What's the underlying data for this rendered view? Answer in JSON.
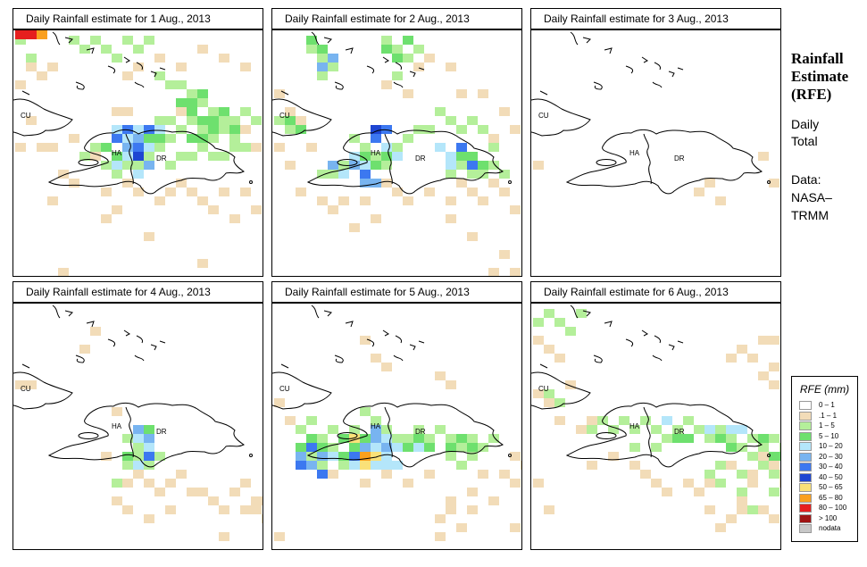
{
  "panels": [
    {
      "title": "Daily Rainfall estimate for  1 Aug., 2013"
    },
    {
      "title": "Daily Rainfall estimate for  2 Aug., 2013"
    },
    {
      "title": "Daily Rainfall estimate for  3 Aug., 2013"
    },
    {
      "title": "Daily Rainfall estimate for  4 Aug., 2013"
    },
    {
      "title": "Daily Rainfall estimate for  5 Aug., 2013"
    },
    {
      "title": "Daily Rainfall estimate for  6 Aug., 2013"
    }
  ],
  "map_labels": {
    "cuba": "CU",
    "haiti": "HA",
    "dominican_republic": "DR"
  },
  "side": {
    "title_lines": [
      "Rainfall",
      "Estimate",
      "(RFE)"
    ],
    "daily_lines": [
      "Daily",
      "Total"
    ],
    "data_lines": [
      "Data:",
      "NASA–",
      "TRMM"
    ]
  },
  "legend": {
    "title": "RFE (mm)",
    "items": [
      {
        "label": "0 – 1",
        "color": "#ffffff"
      },
      {
        "label": ".1 – 1",
        "color": "#f2dcb8"
      },
      {
        "label": "1 – 5",
        "color": "#b4ef9a"
      },
      {
        "label": "5 – 10",
        "color": "#6ee06e"
      },
      {
        "label": "10 – 20",
        "color": "#b4e6fa"
      },
      {
        "label": "20 – 30",
        "color": "#78b4f0"
      },
      {
        "label": "30 – 40",
        "color": "#3c78f0"
      },
      {
        "label": "40 – 50",
        "color": "#1e46d2"
      },
      {
        "label": "50 – 65",
        "color": "#fae178"
      },
      {
        "label": "65 – 80",
        "color": "#faa01e"
      },
      {
        "label": "80 – 100",
        "color": "#e61e1e"
      },
      {
        "label": "> 100",
        "color": "#a01414"
      },
      {
        "label": "nodata",
        "color": "#c8c8c8"
      }
    ]
  }
}
